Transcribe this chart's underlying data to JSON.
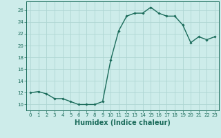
{
  "x": [
    0,
    1,
    2,
    3,
    4,
    5,
    6,
    7,
    8,
    9,
    10,
    11,
    12,
    13,
    14,
    15,
    16,
    17,
    18,
    19,
    20,
    21,
    22,
    23
  ],
  "y": [
    12,
    12.2,
    11.8,
    11.0,
    11.0,
    10.5,
    10.0,
    10.0,
    10.0,
    10.5,
    17.5,
    22.5,
    25.0,
    25.5,
    25.5,
    26.5,
    25.5,
    25.0,
    25.0,
    23.5,
    20.5,
    21.5,
    21.0,
    21.5
  ],
  "line_color": "#1a6b5a",
  "marker": "D",
  "marker_size": 1.8,
  "bg_color": "#cdecea",
  "grid_color": "#aed6d3",
  "xlabel": "Humidex (Indice chaleur)",
  "ylim": [
    9,
    27.5
  ],
  "xlim": [
    -0.5,
    23.5
  ],
  "yticks": [
    10,
    12,
    14,
    16,
    18,
    20,
    22,
    24,
    26
  ],
  "xticks": [
    0,
    1,
    2,
    3,
    4,
    5,
    6,
    7,
    8,
    9,
    10,
    11,
    12,
    13,
    14,
    15,
    16,
    17,
    18,
    19,
    20,
    21,
    22,
    23
  ],
  "tick_label_fontsize": 5.0,
  "xlabel_fontsize": 7.0,
  "line_width": 1.0
}
